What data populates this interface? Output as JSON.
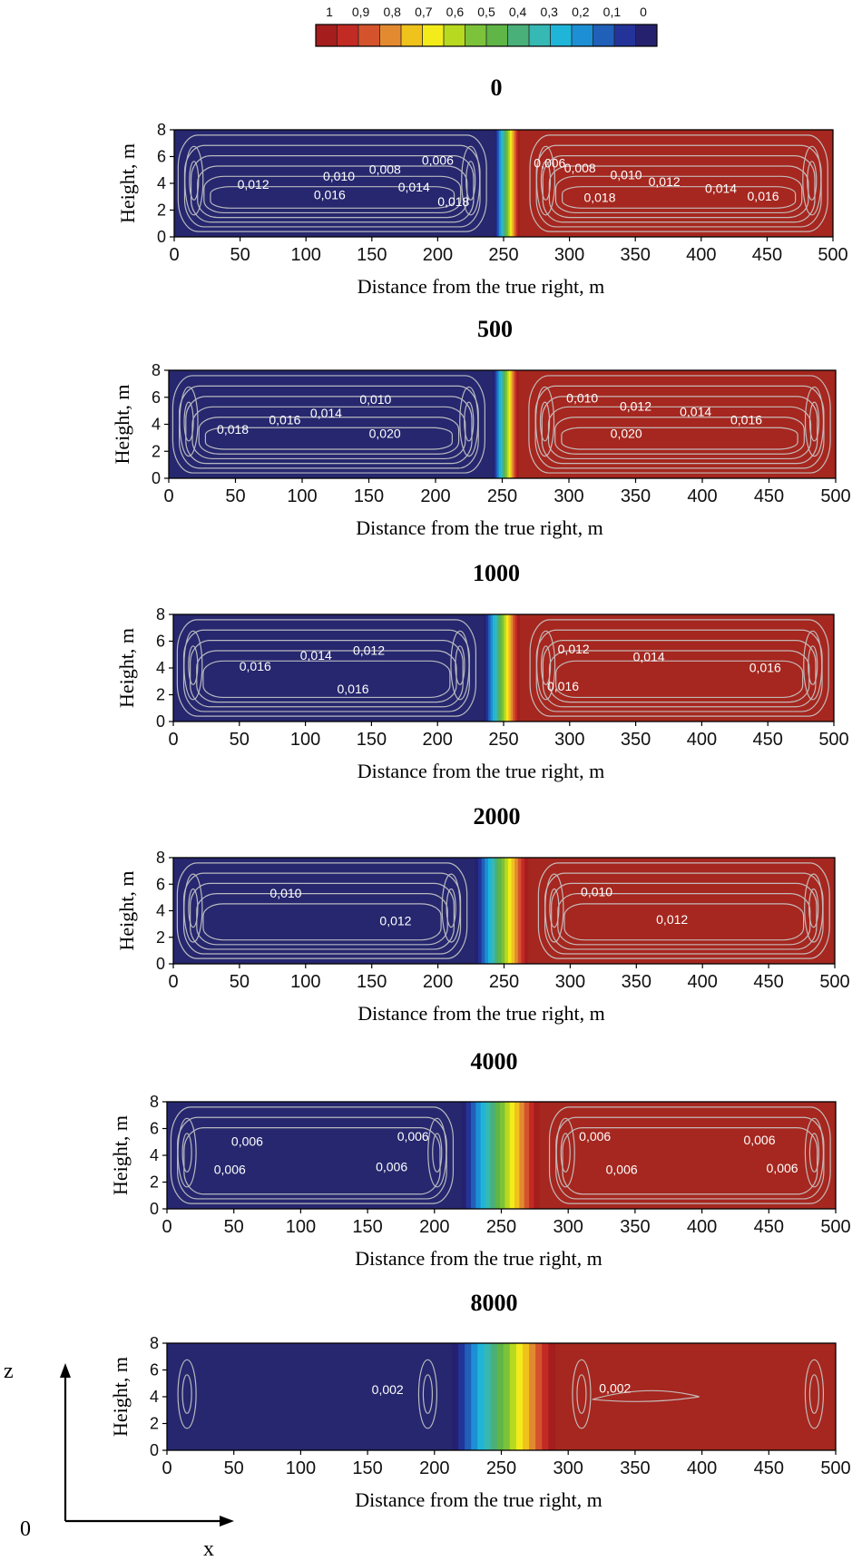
{
  "colorbar": {
    "labels": [
      "1",
      "0,9",
      "0,8",
      "0,7",
      "0,6",
      "0,5",
      "0,4",
      "0,3",
      "0,2",
      "0,1",
      "0"
    ],
    "colors": [
      "#a51d1d",
      "#c22a24",
      "#d4532c",
      "#e38a31",
      "#efc21c",
      "#f3ec1a",
      "#b7d91f",
      "#7cc23a",
      "#5fb546",
      "#4ab07a",
      "#36b8b4",
      "#1fb5d8",
      "#1d8fd4",
      "#2060b8",
      "#23339a",
      "#25216e"
    ]
  },
  "axis_origin_label": "0",
  "axis_x_label": "x",
  "axis_z_label": "z",
  "colors": {
    "left": "#26276e",
    "right": "#a5271f",
    "contour": "#c9c9c9"
  },
  "chart_data": [
    {
      "type": "heatmap",
      "title": "0",
      "xlabel": "Distance from the true right, m",
      "ylabel": "Height, m",
      "xlim": [
        0,
        500
      ],
      "ylim": [
        0,
        8
      ],
      "xticks": [
        "0",
        "50",
        "100",
        "150",
        "200",
        "250",
        "300",
        "350",
        "400",
        "450",
        "500"
      ],
      "yticks": [
        "0",
        "2",
        "4",
        "6",
        "8"
      ],
      "front": {
        "x_start": 243,
        "x_end": 262
      },
      "contour_labels": [
        {
          "text": "0,012",
          "x": 60,
          "y": 3.6
        },
        {
          "text": "0,010",
          "x": 125,
          "y": 4.2
        },
        {
          "text": "0,008",
          "x": 160,
          "y": 4.7
        },
        {
          "text": "0,006",
          "x": 200,
          "y": 5.4
        },
        {
          "text": "0,016",
          "x": 118,
          "y": 2.8
        },
        {
          "text": "0,014",
          "x": 182,
          "y": 3.4
        },
        {
          "text": "0,018",
          "x": 212,
          "y": 2.3
        },
        {
          "text": "0,006",
          "x": 285,
          "y": 5.2
        },
        {
          "text": "0,008",
          "x": 308,
          "y": 4.8
        },
        {
          "text": "0,010",
          "x": 343,
          "y": 4.3
        },
        {
          "text": "0,012",
          "x": 372,
          "y": 3.8
        },
        {
          "text": "0,014",
          "x": 415,
          "y": 3.3
        },
        {
          "text": "0,016",
          "x": 447,
          "y": 2.7
        },
        {
          "text": "0,018",
          "x": 323,
          "y": 2.6
        }
      ]
    },
    {
      "type": "heatmap",
      "title": "500",
      "xlabel": "Distance from the true right, m",
      "ylabel": "Height, m",
      "xlim": [
        0,
        500
      ],
      "ylim": [
        0,
        8
      ],
      "xticks": [
        "0",
        "50",
        "100",
        "150",
        "200",
        "250",
        "300",
        "350",
        "400",
        "450",
        "500"
      ],
      "yticks": [
        "0",
        "2",
        "4",
        "6",
        "8"
      ],
      "front": {
        "x_start": 243,
        "x_end": 262
      },
      "contour_labels": [
        {
          "text": "0,018",
          "x": 48,
          "y": 3.3
        },
        {
          "text": "0,016",
          "x": 87,
          "y": 4.0
        },
        {
          "text": "0,014",
          "x": 118,
          "y": 4.5
        },
        {
          "text": "0,010",
          "x": 155,
          "y": 5.5
        },
        {
          "text": "0,020",
          "x": 162,
          "y": 3.0
        },
        {
          "text": "0,010",
          "x": 310,
          "y": 5.6
        },
        {
          "text": "0,012",
          "x": 350,
          "y": 5.0
        },
        {
          "text": "0,014",
          "x": 395,
          "y": 4.6
        },
        {
          "text": "0,016",
          "x": 433,
          "y": 4.0
        },
        {
          "text": "0,020",
          "x": 343,
          "y": 3.0
        }
      ]
    },
    {
      "type": "heatmap",
      "title": "1000",
      "xlabel": "Distance from the true right, m",
      "ylabel": "Height, m",
      "xlim": [
        0,
        500
      ],
      "ylim": [
        0,
        8
      ],
      "xticks": [
        "0",
        "50",
        "100",
        "150",
        "200",
        "250",
        "300",
        "350",
        "400",
        "450",
        "500"
      ],
      "yticks": [
        "0",
        "2",
        "4",
        "6",
        "8"
      ],
      "front": {
        "x_start": 235,
        "x_end": 262
      },
      "contour_labels": [
        {
          "text": "0,016",
          "x": 62,
          "y": 3.8
        },
        {
          "text": "0,014",
          "x": 108,
          "y": 4.6
        },
        {
          "text": "0,012",
          "x": 148,
          "y": 5.0
        },
        {
          "text": "0,016",
          "x": 136,
          "y": 2.1
        },
        {
          "text": "0,012",
          "x": 303,
          "y": 5.1
        },
        {
          "text": "0,014",
          "x": 360,
          "y": 4.5
        },
        {
          "text": "0,016",
          "x": 295,
          "y": 2.3
        },
        {
          "text": "0,016",
          "x": 448,
          "y": 3.7
        }
      ]
    },
    {
      "type": "heatmap",
      "title": "2000",
      "xlabel": "Distance from the true right, m",
      "ylabel": "Height, m",
      "xlim": [
        0,
        500
      ],
      "ylim": [
        0,
        8
      ],
      "xticks": [
        "0",
        "50",
        "100",
        "150",
        "200",
        "250",
        "300",
        "350",
        "400",
        "450",
        "500"
      ],
      "yticks": [
        "0",
        "2",
        "4",
        "6",
        "8"
      ],
      "front": {
        "x_start": 228,
        "x_end": 268
      },
      "contour_labels": [
        {
          "text": "0,010",
          "x": 85,
          "y": 5.0
        },
        {
          "text": "0,012",
          "x": 168,
          "y": 2.9
        },
        {
          "text": "0,010",
          "x": 320,
          "y": 5.1
        },
        {
          "text": "0,012",
          "x": 377,
          "y": 3.0
        }
      ]
    },
    {
      "type": "heatmap",
      "title": "4000",
      "xlabel": "Distance from the true right, m",
      "ylabel": "Height, m",
      "xlim": [
        0,
        500
      ],
      "ylim": [
        0,
        8
      ],
      "xticks": [
        "0",
        "50",
        "100",
        "150",
        "200",
        "250",
        "300",
        "350",
        "400",
        "450",
        "500"
      ],
      "yticks": [
        "0",
        "2",
        "4",
        "6",
        "8"
      ],
      "front": {
        "x_start": 220,
        "x_end": 278
      },
      "contour_labels": [
        {
          "text": "0,006",
          "x": 60,
          "y": 4.7
        },
        {
          "text": "0,006",
          "x": 184,
          "y": 5.1
        },
        {
          "text": "0,006",
          "x": 47,
          "y": 2.6
        },
        {
          "text": "0,006",
          "x": 168,
          "y": 2.8
        },
        {
          "text": "0,006",
          "x": 320,
          "y": 5.1
        },
        {
          "text": "0,006",
          "x": 443,
          "y": 4.8
        },
        {
          "text": "0,006",
          "x": 340,
          "y": 2.6
        },
        {
          "text": "0,006",
          "x": 460,
          "y": 2.7
        }
      ]
    },
    {
      "type": "heatmap",
      "title": "8000",
      "xlabel": "Distance from the true right, m",
      "ylabel": "Height, m",
      "xlim": [
        0,
        500
      ],
      "ylim": [
        0,
        8
      ],
      "xticks": [
        "0",
        "50",
        "100",
        "150",
        "200",
        "250",
        "300",
        "350",
        "400",
        "450",
        "500"
      ],
      "yticks": [
        "0",
        "2",
        "4",
        "6",
        "8"
      ],
      "front": {
        "x_start": 213,
        "x_end": 290
      },
      "contour_labels": [
        {
          "text": "0,002",
          "x": 165,
          "y": 4.2
        },
        {
          "text": "0,002",
          "x": 335,
          "y": 4.3
        }
      ]
    }
  ]
}
